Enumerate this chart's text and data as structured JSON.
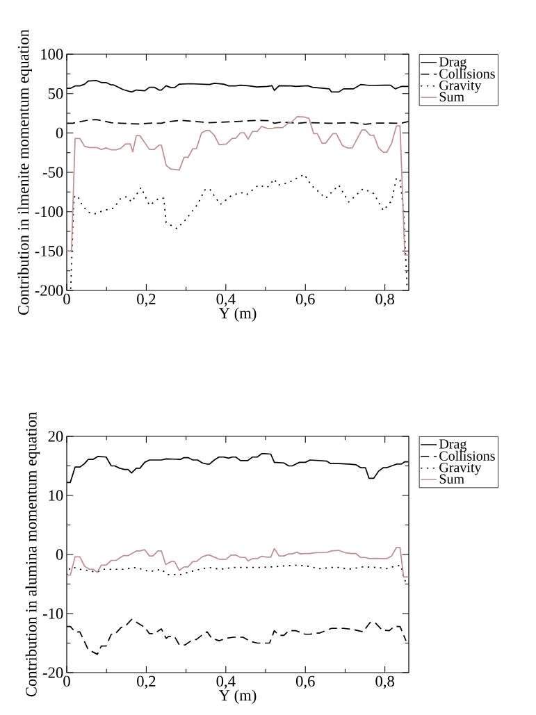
{
  "chart_data": [
    {
      "type": "line",
      "xlabel": "Y (m)",
      "ylabel": "Contribution in ilmenite momentum equation",
      "xlim": [
        0,
        0.86
      ],
      "ylim": [
        -200,
        100
      ],
      "xticks": [
        0,
        {
          "value": 0.1,
          "label": null
        },
        {
          "value": 0.2,
          "label": "0,2"
        },
        {
          "value": 0.3,
          "label": null
        },
        {
          "value": 0.4,
          "label": "0,4"
        },
        {
          "value": 0.5,
          "label": null
        },
        {
          "value": 0.6,
          "label": "0,6"
        },
        {
          "value": 0.7,
          "label": null
        },
        {
          "value": 0.8,
          "label": "0,8"
        }
      ],
      "yticks": [
        -200,
        {
          "value": -175,
          "label": null
        },
        -150,
        {
          "value": -125,
          "label": null
        },
        -100,
        {
          "value": -75,
          "label": null
        },
        -50,
        {
          "value": -25,
          "label": null
        },
        0,
        {
          "value": 25,
          "label": null
        },
        50,
        {
          "value": 75,
          "label": null
        },
        100
      ],
      "legend": "top right",
      "grid": false,
      "marker": "none",
      "series": [
        {
          "name": "Drag",
          "color": "#000000",
          "line_style": "solid",
          "x": [
            0,
            0.009,
            0.021,
            0.033,
            0.045,
            0.054,
            0.075,
            0.087,
            0.099,
            0.112,
            0.118,
            0.142,
            0.163,
            0.175,
            0.196,
            0.208,
            0.22,
            0.232,
            0.238,
            0.25,
            0.262,
            0.271,
            0.283,
            0.311,
            0.359,
            0.371,
            0.395,
            0.407,
            0.425,
            0.437,
            0.455,
            0.479,
            0.504,
            0.516,
            0.522,
            0.534,
            0.564,
            0.576,
            0.606,
            0.618,
            0.66,
            0.666,
            0.684,
            0.696,
            0.721,
            0.739,
            0.763,
            0.799,
            0.814,
            0.826,
            0.841,
            0.859
          ],
          "values": [
            56.6,
            56.6,
            59.7,
            59.7,
            62,
            66,
            66.5,
            64,
            64,
            61,
            61,
            55,
            52,
            54.5,
            53.5,
            58,
            58,
            54.5,
            54.5,
            60,
            57.5,
            57.5,
            62,
            62.5,
            61.5,
            63,
            62,
            59.7,
            59.7,
            60.6,
            60,
            58.5,
            59,
            60,
            54,
            60,
            59.7,
            59,
            60,
            58,
            56,
            52,
            52,
            56,
            56,
            61.5,
            60.3,
            60.6,
            60.6,
            56,
            59,
            59
          ]
        },
        {
          "name": "Collisions",
          "color": "#000000",
          "line_style": "dashed",
          "x": [
            0,
            0.015,
            0.057,
            0.075,
            0.112,
            0.136,
            0.178,
            0.214,
            0.238,
            0.25,
            0.286,
            0.359,
            0.407,
            0.479,
            0.51,
            0.522,
            0.54,
            0.582,
            0.6,
            0.66,
            0.721,
            0.751,
            0.781,
            0.841,
            0.859
          ],
          "values": [
            12.3,
            12.3,
            16.6,
            17,
            13,
            12.3,
            11.4,
            12.5,
            12.3,
            14,
            16,
            13,
            14,
            16,
            15.7,
            12.3,
            13.8,
            12.3,
            13.2,
            12.3,
            13,
            11,
            12.6,
            12.3,
            14.5
          ]
        },
        {
          "name": "Gravity",
          "color": "#000000",
          "line_style": "dotted",
          "x": [
            0.01,
            0.018,
            0.027,
            0.039,
            0.054,
            0.069,
            0.093,
            0.118,
            0.136,
            0.151,
            0.163,
            0.187,
            0.208,
            0.232,
            0.244,
            0.25,
            0.277,
            0.298,
            0.329,
            0.347,
            0.359,
            0.386,
            0.413,
            0.437,
            0.452,
            0.482,
            0.504,
            0.522,
            0.531,
            0.558,
            0.597,
            0.615,
            0.651,
            0.684,
            0.709,
            0.745,
            0.772,
            0.796,
            0.817,
            0.829,
            0.838,
            0.847,
            0.856
          ],
          "values": [
            -198,
            -81.6,
            -79.4,
            -92,
            -100.6,
            -103,
            -98.5,
            -95.4,
            -83,
            -81,
            -87.7,
            -69.3,
            -92,
            -83,
            -83,
            -113.8,
            -121.5,
            -110.7,
            -90.8,
            -72.4,
            -70.9,
            -90.8,
            -80,
            -75.5,
            -78.5,
            -66.3,
            -69.3,
            -58.6,
            -66.3,
            -63,
            -52.5,
            -66.3,
            -83,
            -66.3,
            -87.7,
            -70.9,
            -77,
            -98.5,
            -86.2,
            -57,
            -60,
            -98.5,
            -198
          ]
        },
        {
          "name": "Sum",
          "color": "#c09090",
          "line_style": "solid",
          "x": [
            0,
            0.012,
            0.021,
            0.033,
            0.045,
            0.057,
            0.075,
            0.087,
            0.099,
            0.112,
            0.124,
            0.136,
            0.148,
            0.16,
            0.166,
            0.175,
            0.184,
            0.208,
            0.22,
            0.232,
            0.238,
            0.25,
            0.262,
            0.283,
            0.295,
            0.305,
            0.317,
            0.326,
            0.339,
            0.35,
            0.359,
            0.371,
            0.383,
            0.401,
            0.416,
            0.425,
            0.437,
            0.446,
            0.456,
            0.467,
            0.479,
            0.49,
            0.504,
            0.516,
            0.528,
            0.543,
            0.558,
            0.564,
            0.579,
            0.597,
            0.609,
            0.621,
            0.63,
            0.642,
            0.651,
            0.669,
            0.678,
            0.693,
            0.706,
            0.718,
            0.742,
            0.751,
            0.763,
            0.772,
            0.784,
            0.796,
            0.805,
            0.817,
            0.829,
            0.838,
            0.85,
            0.859
          ],
          "values": [
            -150,
            -150,
            -7,
            -7,
            -17,
            -18.5,
            -18.5,
            -21,
            -19,
            -21.5,
            -21.5,
            -19.5,
            -14,
            -14,
            -24,
            -3.4,
            -3.4,
            -21,
            -21,
            -15.4,
            -15.4,
            -41,
            -46,
            -47,
            -31,
            -31,
            -20,
            -20,
            0,
            3,
            3,
            -3,
            -14.8,
            -14.2,
            -6.8,
            -6.8,
            0.3,
            0.3,
            -8,
            2,
            2,
            8.3,
            5.8,
            5.8,
            6.8,
            6.8,
            13,
            13,
            20.6,
            20.3,
            18.5,
            -1,
            -1,
            -13,
            -13,
            -1,
            -1,
            -16,
            -19,
            -19,
            3.7,
            3.7,
            -3,
            -3,
            -19,
            -24.6,
            -24.6,
            -13,
            9,
            9,
            -155,
            -155
          ]
        }
      ]
    },
    {
      "type": "line",
      "xlabel": "Y (m)",
      "ylabel": "Contribution in alumina momentum equation",
      "xlim": [
        0,
        0.86
      ],
      "ylim": [
        -20,
        20
      ],
      "xticks": [
        0,
        {
          "value": 0.1,
          "label": null
        },
        {
          "value": 0.2,
          "label": "0,2"
        },
        {
          "value": 0.3,
          "label": null
        },
        {
          "value": 0.4,
          "label": "0,4"
        },
        {
          "value": 0.5,
          "label": null
        },
        {
          "value": 0.6,
          "label": "0,6"
        },
        {
          "value": 0.7,
          "label": null
        },
        {
          "value": 0.8,
          "label": "0,8"
        }
      ],
      "yticks": [
        -20,
        {
          "value": -15,
          "label": null
        },
        -10,
        {
          "value": -5,
          "label": null
        },
        0,
        {
          "value": 5,
          "label": null
        },
        10,
        {
          "value": 15,
          "label": null
        },
        20
      ],
      "legend": "top right",
      "grid": false,
      "marker": "none",
      "series": [
        {
          "name": "Drag",
          "color": "#000000",
          "line_style": "solid",
          "x": [
            0,
            0.009,
            0.021,
            0.033,
            0.045,
            0.054,
            0.066,
            0.078,
            0.099,
            0.112,
            0.121,
            0.133,
            0.145,
            0.154,
            0.163,
            0.175,
            0.184,
            0.196,
            0.208,
            0.238,
            0.25,
            0.286,
            0.295,
            0.305,
            0.317,
            0.329,
            0.341,
            0.353,
            0.359,
            0.371,
            0.383,
            0.395,
            0.407,
            0.416,
            0.425,
            0.437,
            0.455,
            0.467,
            0.479,
            0.491,
            0.513,
            0.522,
            0.546,
            0.558,
            0.567,
            0.585,
            0.6,
            0.612,
            0.654,
            0.663,
            0.684,
            0.709,
            0.727,
            0.739,
            0.751,
            0.76,
            0.772,
            0.784,
            0.796,
            0.805,
            0.817,
            0.829,
            0.841,
            0.85,
            0.859
          ],
          "values": [
            12.2,
            12.2,
            14.8,
            14.8,
            15.4,
            16.1,
            16.1,
            16.6,
            16.5,
            15,
            15,
            14.6,
            14.4,
            14.4,
            13.8,
            14.6,
            14.6,
            15.6,
            16,
            16,
            16.2,
            16.1,
            16.4,
            16.4,
            16,
            16,
            15.5,
            15.3,
            15.3,
            16,
            16.5,
            16.5,
            16.3,
            16.5,
            16.5,
            15.9,
            15.9,
            16.5,
            16.5,
            17.1,
            17,
            15.6,
            15.5,
            15,
            15,
            15.6,
            15.6,
            16,
            15.8,
            15.4,
            15.4,
            15.3,
            15.2,
            14.7,
            14.7,
            12.9,
            12.9,
            14.1,
            14.7,
            14.7,
            15,
            15.3,
            15.3,
            15.7,
            15.7
          ]
        },
        {
          "name": "Collisions",
          "color": "#000000",
          "line_style": "dashed",
          "x": [
            0,
            0.009,
            0.021,
            0.033,
            0.054,
            0.077,
            0.087,
            0.099,
            0.112,
            0.121,
            0.136,
            0.148,
            0.163,
            0.178,
            0.196,
            0.208,
            0.22,
            0.238,
            0.25,
            0.256,
            0.271,
            0.283,
            0.298,
            0.317,
            0.326,
            0.341,
            0.353,
            0.365,
            0.383,
            0.401,
            0.419,
            0.443,
            0.461,
            0.479,
            0.51,
            0.522,
            0.534,
            0.546,
            0.558,
            0.576,
            0.6,
            0.612,
            0.624,
            0.636,
            0.651,
            0.666,
            0.696,
            0.721,
            0.745,
            0.763,
            0.775,
            0.793,
            0.811,
            0.823,
            0.838,
            0.853
          ],
          "values": [
            -12.2,
            -12.2,
            -13.1,
            -13.1,
            -16.1,
            -16.9,
            -15.5,
            -15.5,
            -13.5,
            -13.5,
            -12.4,
            -12.1,
            -11,
            -11.6,
            -12.3,
            -13.4,
            -13.4,
            -12.6,
            -14.2,
            -13.9,
            -13.9,
            -15.3,
            -15.3,
            -14.4,
            -14.4,
            -13.6,
            -13.1,
            -14.2,
            -14.6,
            -14.2,
            -14,
            -14,
            -14.7,
            -15,
            -15,
            -12.9,
            -13.7,
            -13.7,
            -12.9,
            -12.9,
            -13.5,
            -13.5,
            -13.3,
            -13.3,
            -12.9,
            -12.5,
            -12.5,
            -12.7,
            -13.1,
            -11.5,
            -11.5,
            -12.8,
            -12.9,
            -12.2,
            -12.2,
            -14.6
          ]
        },
        {
          "name": "Gravity",
          "color": "#000000",
          "line_style": "dotted",
          "x": [
            0,
            0.009,
            0.018,
            0.033,
            0.054,
            0.075,
            0.093,
            0.118,
            0.145,
            0.175,
            0.208,
            0.238,
            0.253,
            0.286,
            0.311,
            0.335,
            0.359,
            0.386,
            0.419,
            0.455,
            0.479,
            0.516,
            0.552,
            0.576,
            0.6,
            0.636,
            0.666,
            0.684,
            0.709,
            0.745,
            0.781,
            0.805,
            0.829,
            0.841,
            0.847,
            0.856
          ],
          "values": [
            -3.5,
            -2.2,
            -2.2,
            -2.5,
            -2.7,
            -3,
            -2.5,
            -2.5,
            -2.5,
            -2.2,
            -2.9,
            -2.5,
            -3.4,
            -3.4,
            -2.9,
            -2.5,
            -2.2,
            -2.5,
            -2.2,
            -2.2,
            -2.2,
            -2.1,
            -1.9,
            -1.8,
            -1.9,
            -2.4,
            -2.2,
            -2.2,
            -2.5,
            -2.1,
            -2.2,
            -2.4,
            -1.9,
            -1.9,
            -4,
            -5
          ]
        },
        {
          "name": "Sum",
          "color": "#c09090",
          "line_style": "solid",
          "x": [
            0,
            0.009,
            0.021,
            0.033,
            0.045,
            0.057,
            0.066,
            0.077,
            0.087,
            0.099,
            0.112,
            0.124,
            0.142,
            0.154,
            0.175,
            0.184,
            0.196,
            0.208,
            0.217,
            0.229,
            0.238,
            0.249,
            0.262,
            0.271,
            0.283,
            0.295,
            0.305,
            0.317,
            0.326,
            0.341,
            0.353,
            0.359,
            0.383,
            0.401,
            0.413,
            0.425,
            0.437,
            0.449,
            0.456,
            0.467,
            0.479,
            0.49,
            0.504,
            0.513,
            0.522,
            0.534,
            0.546,
            0.558,
            0.567,
            0.579,
            0.588,
            0.6,
            0.612,
            0.624,
            0.654,
            0.666,
            0.684,
            0.7,
            0.715,
            0.727,
            0.739,
            0.751,
            0.76,
            0.775,
            0.793,
            0.805,
            0.817,
            0.829,
            0.838,
            0.847,
            0.859
          ],
          "values": [
            -3.5,
            -3.5,
            -0.4,
            -0.4,
            -2,
            -2.5,
            -2.5,
            -3,
            -1.8,
            -1.8,
            -1,
            -1,
            -0.2,
            -0.2,
            0.6,
            0.6,
            0.8,
            -0.25,
            -0.25,
            0.6,
            0.6,
            -1.7,
            -1.2,
            -1.2,
            -2.7,
            -2.1,
            -2.1,
            -1.2,
            -1.2,
            -0.4,
            -0.1,
            -0.1,
            -0.8,
            -0.8,
            -0.1,
            -0.1,
            -0.5,
            -0.5,
            -1.1,
            -0.7,
            -0.7,
            -0.3,
            -0.45,
            -0.45,
            1,
            -0.25,
            -0.25,
            0.1,
            0.1,
            0.4,
            0.1,
            0.15,
            0.15,
            0.3,
            0.35,
            0.6,
            0.7,
            0.3,
            0.15,
            0.15,
            -0.5,
            -0.5,
            -0.7,
            -0.65,
            -0.7,
            -0.7,
            -0.25,
            1.2,
            1.2,
            -3.8,
            -3.8
          ]
        }
      ]
    }
  ]
}
